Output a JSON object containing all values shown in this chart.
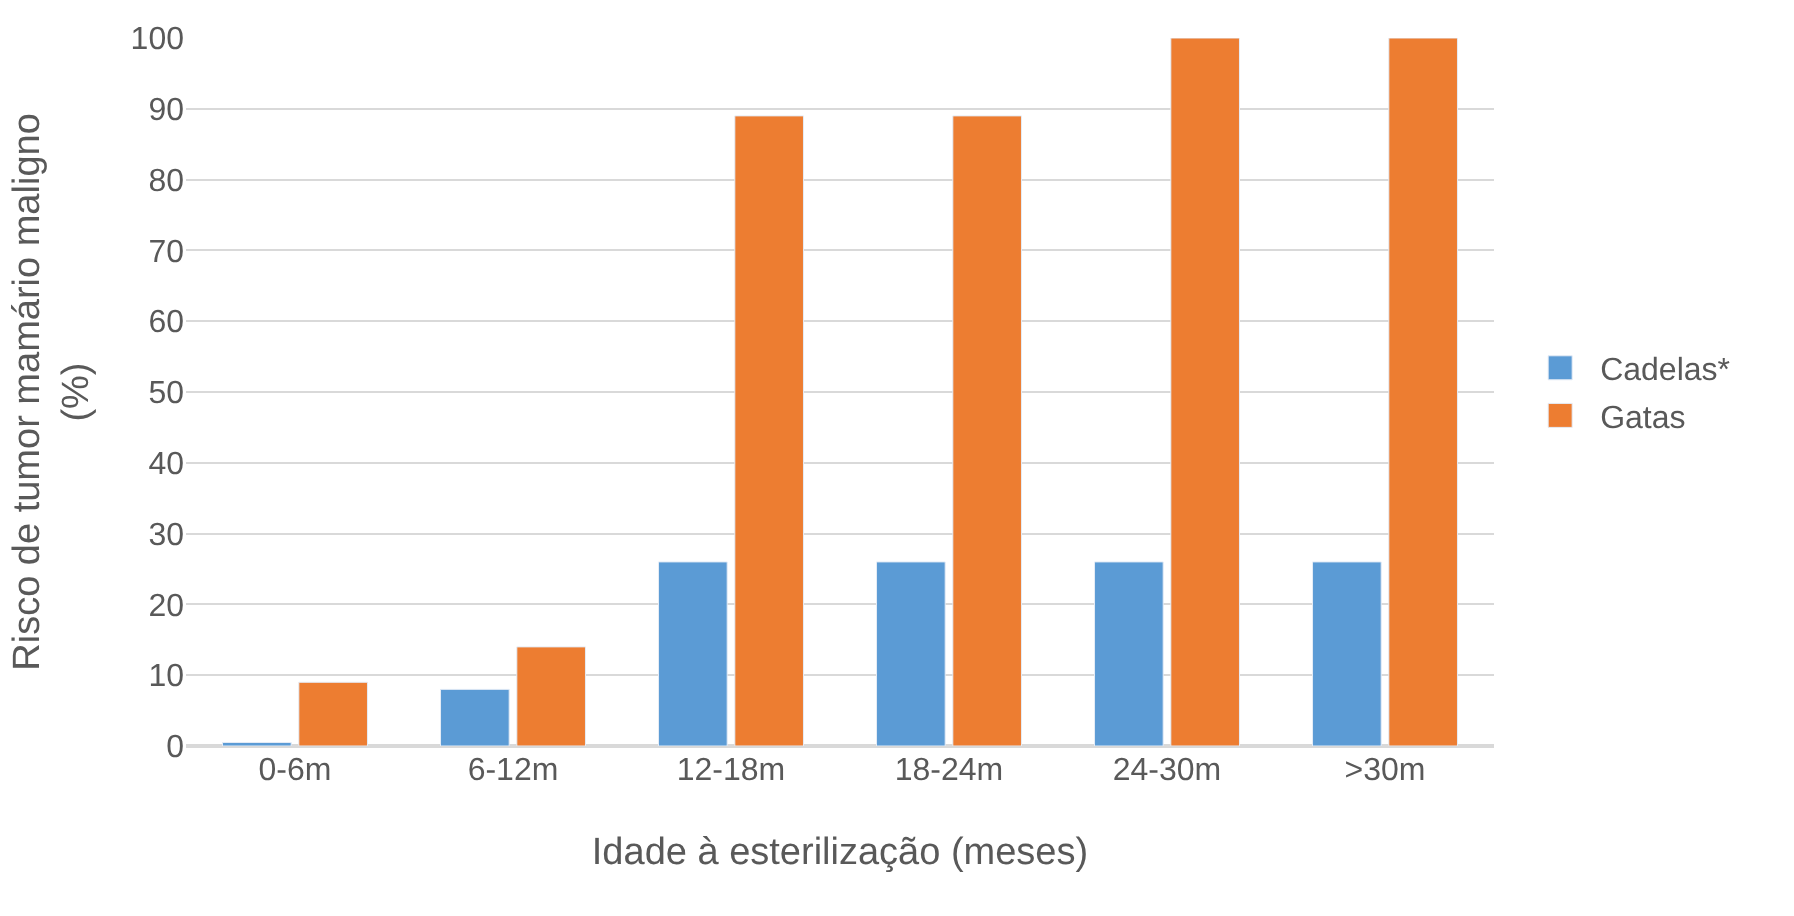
{
  "chart_data": {
    "type": "bar",
    "xlabel": "Idade à esterilização (meses)",
    "ylabel": "Risco de tumor mamário maligno (%)",
    "categories": [
      "0-6m",
      "6-12m",
      "12-18m",
      "18-24m",
      "24-30m",
      ">30m"
    ],
    "series": [
      {
        "name": "Cadelas*",
        "color": "#5b9bd5",
        "values": [
          0.5,
          8,
          26,
          26,
          26,
          26
        ]
      },
      {
        "name": "Gatas",
        "color": "#ed7d31",
        "values": [
          9,
          14,
          89,
          89,
          100,
          100
        ]
      }
    ],
    "ylim": [
      0,
      100
    ],
    "yticks": [
      0,
      10,
      20,
      30,
      40,
      50,
      60,
      70,
      80,
      90,
      100
    ],
    "grid": "y",
    "legend": "right"
  }
}
